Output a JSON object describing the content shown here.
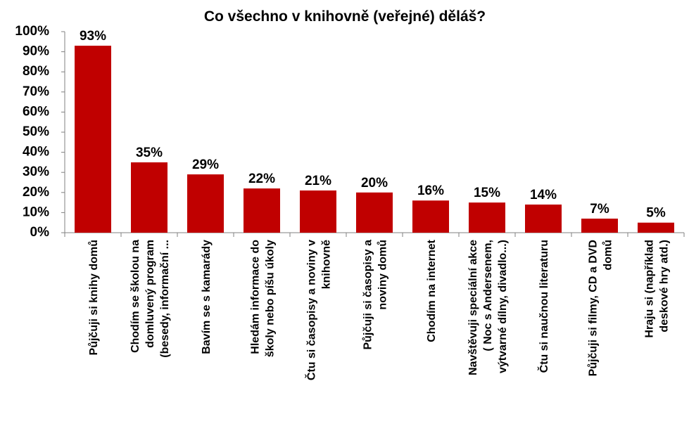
{
  "chart_data": {
    "type": "bar",
    "title": "Co všechno v knihovně (veřejné) děláš?",
    "categories": [
      [
        "Půjčuji si knihy domů"
      ],
      [
        "Chodím se školou na",
        "domluvený program",
        "(besedy, informační ..."
      ],
      [
        "Bavím se s kamarády"
      ],
      [
        "Hledám informace do",
        "školy nebo píšu úkoly"
      ],
      [
        "Čtu si časopisy a noviny v",
        "knihovně"
      ],
      [
        "Půjčuji si časopisy a",
        "noviny domů"
      ],
      [
        "Chodím na internet"
      ],
      [
        "Navštěvuji speciální akce",
        "( Noc s Andersenem,",
        "výtvarné dílny, divadlo...)"
      ],
      [
        "Čtu si naučnou literaturu"
      ],
      [
        "Půjčuji si filmy, CD a DVD",
        "domů"
      ],
      [
        "Hraju si (například",
        "deskové hry atd.)"
      ]
    ],
    "values": [
      93,
      35,
      29,
      22,
      21,
      20,
      16,
      15,
      14,
      7,
      5
    ],
    "value_labels": [
      "93%",
      "35%",
      "29%",
      "22%",
      "21%",
      "20%",
      "16%",
      "15%",
      "14%",
      "7%",
      "5%"
    ],
    "color": "#c00000",
    "ylim": [
      0,
      100
    ],
    "yticks": [
      {
        "value": 0,
        "label": "0%"
      },
      {
        "value": 10,
        "label": "10%"
      },
      {
        "value": 20,
        "label": "20%"
      },
      {
        "value": 30,
        "label": "30%"
      },
      {
        "value": 40,
        "label": "40%"
      },
      {
        "value": 50,
        "label": "50%"
      },
      {
        "value": 60,
        "label": "60%"
      },
      {
        "value": 70,
        "label": "70%"
      },
      {
        "value": 80,
        "label": "80%"
      },
      {
        "value": 90,
        "label": "90%"
      },
      {
        "value": 100,
        "label": "100%"
      }
    ],
    "grid": false
  }
}
